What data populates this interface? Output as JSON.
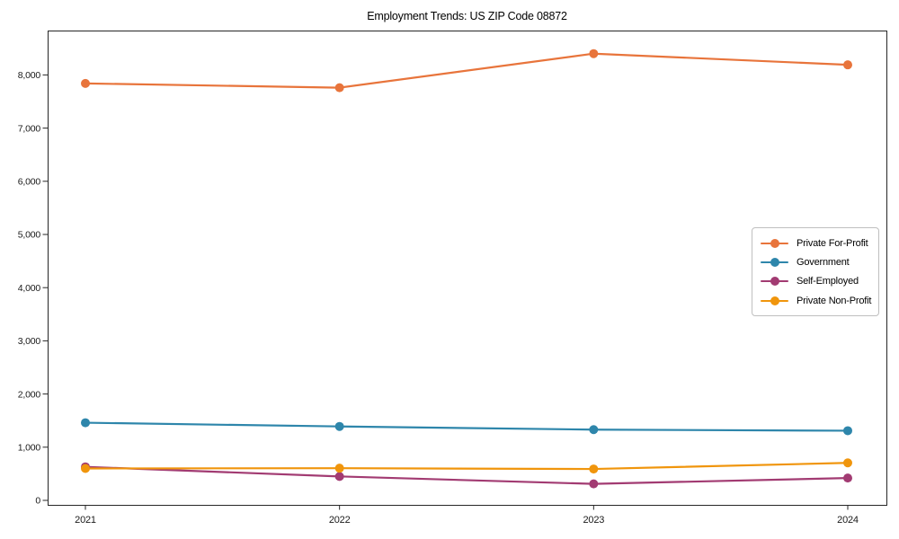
{
  "chart_data": {
    "type": "line",
    "title": "Employment Trends: US ZIP Code 08872",
    "xlabel": "",
    "ylabel": "",
    "categories": [
      "2021",
      "2022",
      "2023",
      "2024"
    ],
    "series": [
      {
        "name": "Private For-Profit",
        "color": "#e8743b",
        "values": [
          7840,
          7760,
          8400,
          8190
        ]
      },
      {
        "name": "Government",
        "color": "#2e86ab",
        "values": [
          1460,
          1390,
          1330,
          1310
        ]
      },
      {
        "name": "Self-Employed",
        "color": "#a23b72",
        "values": [
          630,
          450,
          310,
          420
        ]
      },
      {
        "name": "Private Non-Profit",
        "color": "#f0950c",
        "values": [
          600,
          605,
          590,
          705
        ]
      }
    ],
    "y_ticks": [
      0,
      1000,
      2000,
      3000,
      4000,
      5000,
      6000,
      7000,
      8000
    ],
    "y_tick_labels": [
      "0",
      "1,000",
      "2,000",
      "3,000",
      "4,000",
      "5,000",
      "6,000",
      "7,000",
      "8,000"
    ],
    "ylim": [
      -130,
      8840
    ],
    "grid": false,
    "legend_position": "center right",
    "marker": "circle",
    "axis_color": "#262626",
    "tick_label_color": "#1a1a1a"
  }
}
